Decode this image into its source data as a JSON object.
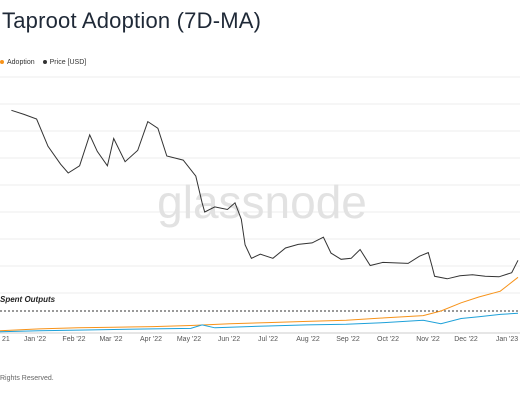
{
  "header": {
    "title": "Taproot Adoption (7D-MA)"
  },
  "legend": [
    {
      "label": "Adoption",
      "color": "#f7931a"
    },
    {
      "label": "Price [USD]",
      "color": "#333333"
    }
  ],
  "footer": {
    "text": "Rights Reserved."
  },
  "watermark": "glassnode",
  "chart_data": {
    "type": "line",
    "title": "Taproot Adoption (7D-MA)",
    "xlabel": "",
    "ylabel": "",
    "grid": true,
    "legend_position": "top-left",
    "x_tick_labels": [
      "21",
      "Jan '22",
      "Feb '22",
      "Mar '22",
      "Apr '22",
      "May '22",
      "Jun '22",
      "Jul '22",
      "Aug '22",
      "Sep '22",
      "Oct '22",
      "Nov '22",
      "Dec '22",
      "Jan '23"
    ],
    "annotation": "Spent Outputs",
    "series": [
      {
        "name": "Price [USD]",
        "color": "#333333",
        "x": [
          "2021-12-10",
          "2021-12-20",
          "2021-12-30",
          "2022-01-08",
          "2022-01-18",
          "2022-01-24",
          "2022-02-02",
          "2022-02-10",
          "2022-02-16",
          "2022-02-24",
          "2022-03-01",
          "2022-03-10",
          "2022-03-20",
          "2022-03-28",
          "2022-04-05",
          "2022-04-12",
          "2022-04-25",
          "2022-05-05",
          "2022-05-10",
          "2022-05-12",
          "2022-05-20",
          "2022-05-30",
          "2022-06-05",
          "2022-06-10",
          "2022-06-13",
          "2022-06-18",
          "2022-06-25",
          "2022-07-05",
          "2022-07-15",
          "2022-07-25",
          "2022-08-05",
          "2022-08-14",
          "2022-08-20",
          "2022-08-28",
          "2022-09-05",
          "2022-09-12",
          "2022-09-20",
          "2022-09-30",
          "2022-10-10",
          "2022-10-20",
          "2022-10-29",
          "2022-11-05",
          "2022-11-08",
          "2022-11-10",
          "2022-11-20",
          "2022-11-30",
          "2022-12-10",
          "2022-12-20",
          "2022-12-31",
          "2023-01-10",
          "2023-01-15"
        ],
        "y": [
          49000,
          48200,
          47300,
          42000,
          38500,
          36800,
          38200,
          44200,
          41000,
          38200,
          43500,
          39000,
          41200,
          46800,
          45500,
          40100,
          39300,
          36200,
          31000,
          29200,
          30200,
          29700,
          31000,
          27800,
          22800,
          20200,
          21000,
          20200,
          22200,
          22900,
          23200,
          24300,
          21200,
          20000,
          20200,
          21900,
          18800,
          19400,
          19300,
          19200,
          20600,
          21300,
          18600,
          16700,
          16200,
          16800,
          17000,
          16700,
          16600,
          17400,
          19800
        ]
      },
      {
        "name": "Adoption",
        "color": "#f7931a",
        "x": [
          "2021-12-01",
          "2022-01-01",
          "2022-02-01",
          "2022-03-01",
          "2022-04-01",
          "2022-05-01",
          "2022-06-01",
          "2022-07-01",
          "2022-08-01",
          "2022-09-01",
          "2022-10-01",
          "2022-11-01",
          "2022-11-15",
          "2022-12-01",
          "2022-12-15",
          "2023-01-01",
          "2023-01-15"
        ],
        "y": [
          0.2,
          0.35,
          0.45,
          0.5,
          0.55,
          0.65,
          0.8,
          0.9,
          1.0,
          1.1,
          1.3,
          1.5,
          1.9,
          2.6,
          3.1,
          3.6,
          4.8
        ]
      },
      {
        "name": "Spent Outputs",
        "color": "#1ea1d9",
        "x": [
          "2021-12-01",
          "2022-01-01",
          "2022-02-01",
          "2022-03-01",
          "2022-04-01",
          "2022-05-01",
          "2022-05-10",
          "2022-05-20",
          "2022-06-01",
          "2022-07-01",
          "2022-08-01",
          "2022-09-01",
          "2022-10-01",
          "2022-11-01",
          "2022-11-15",
          "2022-12-01",
          "2022-12-15",
          "2023-01-01",
          "2023-01-15"
        ],
        "y": [
          0.1,
          0.2,
          0.25,
          0.3,
          0.35,
          0.4,
          0.7,
          0.45,
          0.5,
          0.6,
          0.7,
          0.75,
          0.9,
          1.1,
          0.8,
          1.25,
          1.4,
          1.6,
          1.7
        ]
      }
    ]
  }
}
